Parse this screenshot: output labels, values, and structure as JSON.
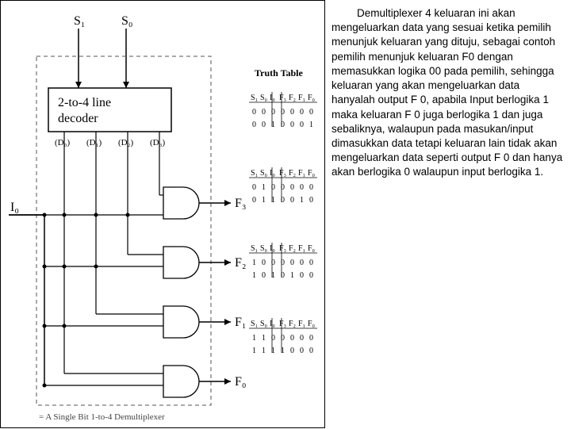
{
  "diagram": {
    "type": "flowchart",
    "title_caption": "= A Single Bit 1-to-4 Demultiplexer",
    "truth_table_label": "Truth Table",
    "selectors": {
      "s1": "S₁",
      "s0": "S₀"
    },
    "decoder_label_line1": "2-to-4 line",
    "decoder_label_line2": "decoder",
    "decoder_outputs": [
      "(D₀)",
      "(D₁)",
      "(D₂)",
      "(D₃)"
    ],
    "input_label": "I₀",
    "gate_outputs": [
      "F₃",
      "F₂",
      "F₁",
      "F₀"
    ],
    "truth_tables": [
      {
        "header": [
          "S₁",
          "S₀",
          "I₀",
          "F₃",
          "F₂",
          "F₁",
          "F₀"
        ],
        "rows": [
          [
            "0",
            "0",
            "0",
            "0",
            "0",
            "0",
            "0"
          ],
          [
            "0",
            "0",
            "1",
            "0",
            "0",
            "0",
            "1"
          ]
        ]
      },
      {
        "header": [
          "S₁",
          "S₀",
          "I₀",
          "F₃",
          "F₂",
          "F₁",
          "F₀"
        ],
        "rows": [
          [
            "0",
            "1",
            "0",
            "0",
            "0",
            "0",
            "0"
          ],
          [
            "0",
            "1",
            "1",
            "0",
            "0",
            "1",
            "0"
          ]
        ]
      },
      {
        "header": [
          "S₁",
          "S₀",
          "I₀",
          "F₃",
          "F₂",
          "F₁",
          "F₀"
        ],
        "rows": [
          [
            "1",
            "0",
            "0",
            "0",
            "0",
            "0",
            "0"
          ],
          [
            "1",
            "0",
            "1",
            "0",
            "1",
            "0",
            "0"
          ]
        ]
      },
      {
        "header": [
          "S₁",
          "S₀",
          "I₀",
          "F₃",
          "F₂",
          "F₁",
          "F₀"
        ],
        "rows": [
          [
            "1",
            "1",
            "0",
            "0",
            "0",
            "0",
            "0"
          ],
          [
            "1",
            "1",
            "1",
            "1",
            "0",
            "0",
            "0"
          ]
        ]
      }
    ],
    "colors": {
      "stroke": "#000000",
      "dash": "#555555",
      "bg": "#ffffff"
    },
    "line_width": 1.2
  },
  "paragraph": "Demultiplexer 4 keluaran ini akan mengeluarkan data yang sesuai ketika pemilih menunjuk keluaran yang dituju, sebagai contoh pemilih menunjuk keluaran F0 dengan memasukkan logika 00 pada pemilih, sehingga keluaran yang akan mengeluarkan data hanyalah output F 0, apabila Input berlogika 1 maka keluaran F 0 juga berlogika 1 dan juga sebaliknya, walaupun pada masukan/input dimasukkan data tetapi keluaran lain tidak akan mengeluarkan data seperti output F 0 dan hanya akan berlogika 0 walaupun input berlogika 1."
}
